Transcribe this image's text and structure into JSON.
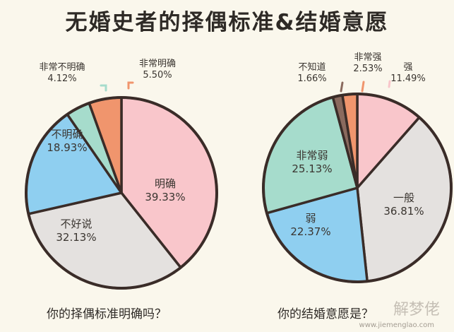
{
  "title": "无婚史者的择偶标准&结婚意愿",
  "watermark": {
    "text": "解梦佬",
    "url": "www.jiemenglao.com"
  },
  "colors": {
    "outline": "#3a2c28",
    "pink": "#f9c6cb",
    "gray": "#e4e1df",
    "blue": "#8fcff0",
    "teal": "#a6dccc",
    "orange": "#f0956d",
    "brown": "#8a6a5e"
  },
  "chart_data": [
    {
      "type": "pie",
      "question": "你的择偶标准明确吗？",
      "slices": [
        {
          "label": "明确",
          "value": 39.33,
          "display": "39.33%",
          "color": "#f9c6cb"
        },
        {
          "label": "不好说",
          "value": 32.13,
          "display": "32.13%",
          "color": "#e4e1df"
        },
        {
          "label": "不明确",
          "value": 18.93,
          "display": "18.93%",
          "color": "#8fcff0"
        },
        {
          "label": "非常不明确",
          "value": 4.12,
          "display": "4.12%",
          "color": "#a6dccc"
        },
        {
          "label": "非常明确",
          "value": 5.5,
          "display": "5.50%",
          "color": "#f0956d"
        }
      ]
    },
    {
      "type": "pie",
      "question": "你的结婚意愿是？",
      "slices": [
        {
          "label": "强",
          "value": 11.49,
          "display": "11.49%",
          "color": "#f9c6cb"
        },
        {
          "label": "一般",
          "value": 36.81,
          "display": "36.81%",
          "color": "#e4e1df"
        },
        {
          "label": "弱",
          "value": 22.37,
          "display": "22.37%",
          "color": "#8fcff0"
        },
        {
          "label": "非常弱",
          "value": 25.13,
          "display": "25.13%",
          "color": "#a6dccc"
        },
        {
          "label": "不知道",
          "value": 1.66,
          "display": "1.66%",
          "color": "#8a6a5e"
        },
        {
          "label": "非常强",
          "value": 2.53,
          "display": "2.53%",
          "color": "#f0956d"
        }
      ]
    }
  ]
}
